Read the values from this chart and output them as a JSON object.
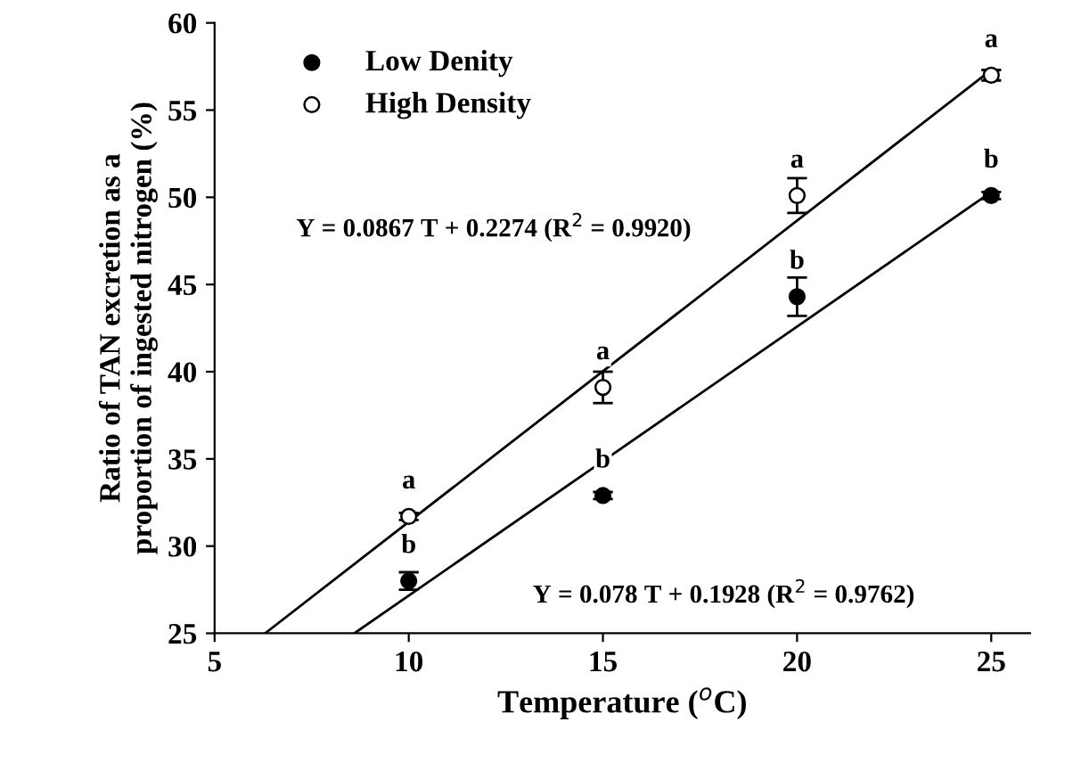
{
  "chart_data": {
    "type": "scatter",
    "xlabel": "Temperature ($^{o}$C)",
    "ylabel": "Ratio of TAN excretion as a\nproportion of ingested nitrogen (%)",
    "x": [
      10,
      15,
      20,
      25
    ],
    "series": [
      {
        "name": "Low Denity",
        "color": "#000000",
        "values": [
          28.0,
          32.9,
          44.3,
          50.1
        ],
        "errors": [
          0.5,
          0.2,
          1.1,
          0.2
        ],
        "marker": "circle"
      },
      {
        "name": "High Density",
        "color": "#ffffff",
        "values": [
          31.7,
          39.1,
          50.1,
          57.0
        ],
        "errors": [
          0.2,
          0.9,
          1.0,
          0.3
        ],
        "marker": "circle"
      },
      {
        "type": "line",
        "color": "#000000",
        "x": [
          6.3,
          25
        ],
        "values": [
          25,
          57.3
        ]
      },
      {
        "type": "line",
        "color": "#000000",
        "x": [
          8.6,
          25
        ],
        "values": [
          25,
          50.3
        ]
      }
    ],
    "xlim": [
      5,
      26
    ],
    "ylim": [
      25,
      60
    ],
    "xticks": [
      5,
      10,
      15,
      20,
      25
    ],
    "yticks": [
      25,
      30,
      35,
      40,
      45,
      50,
      55,
      60
    ],
    "grid": false,
    "legend": "top left",
    "annotations": [
      {
        "text": "a",
        "x": 10,
        "y": 31.7
      },
      {
        "text": "b",
        "x": 10,
        "y": 28.0
      },
      {
        "text": "a",
        "x": 15,
        "y": 39.1
      },
      {
        "text": "b",
        "x": 15,
        "y": 32.9
      },
      {
        "text": "a",
        "x": 20,
        "y": 50.1
      },
      {
        "text": "b",
        "x": 20,
        "y": 44.3
      },
      {
        "text": "a",
        "x": 25,
        "y": 57.0
      },
      {
        "text": "b",
        "x": 25,
        "y": 50.1
      },
      "Y = 0.0867 T + 0.2274 (R$^{2}$ = 0.9920)",
      "Y = 0.078 T + 0.1928 (R$^{2}$ = 0.9762)"
    ]
  }
}
